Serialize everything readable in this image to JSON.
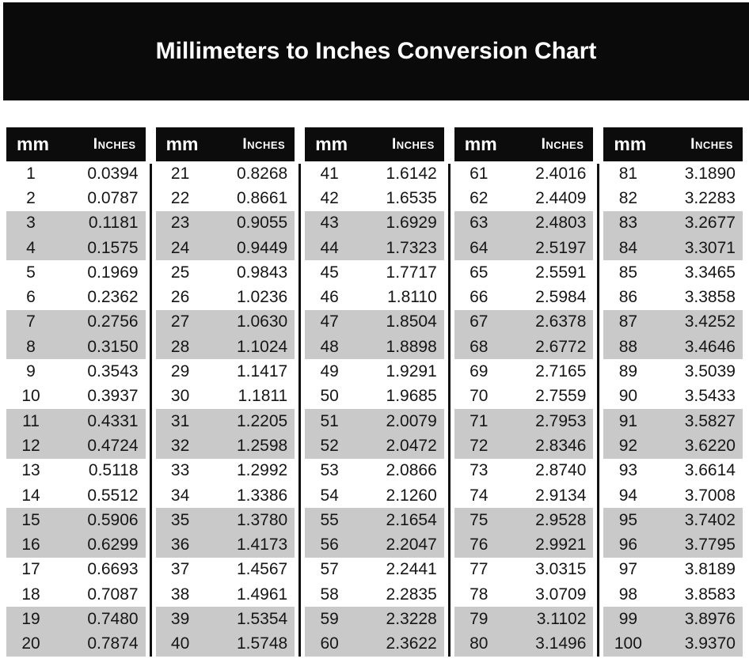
{
  "title": "Millimeters to Inches Conversion Chart",
  "column_headers": {
    "mm": "mm",
    "inches": "Inches"
  },
  "colors": {
    "banner_background": "#0a0a0a",
    "header_background": "#0c0c0c",
    "shaded_row": "#c9c9c9",
    "header_text": "#ffffff",
    "body_text": "#161616"
  },
  "table": {
    "groups": [
      {
        "rows": [
          {
            "mm": "1",
            "inches": "0.0394"
          },
          {
            "mm": "2",
            "inches": "0.0787"
          },
          {
            "mm": "3",
            "inches": "0.1181"
          },
          {
            "mm": "4",
            "inches": "0.1575"
          },
          {
            "mm": "5",
            "inches": "0.1969"
          },
          {
            "mm": "6",
            "inches": "0.2362"
          },
          {
            "mm": "7",
            "inches": "0.2756"
          },
          {
            "mm": "8",
            "inches": "0.3150"
          },
          {
            "mm": "9",
            "inches": "0.3543"
          },
          {
            "mm": "10",
            "inches": "0.3937"
          },
          {
            "mm": "11",
            "inches": "0.4331"
          },
          {
            "mm": "12",
            "inches": "0.4724"
          },
          {
            "mm": "13",
            "inches": "0.5118"
          },
          {
            "mm": "14",
            "inches": "0.5512"
          },
          {
            "mm": "15",
            "inches": "0.5906"
          },
          {
            "mm": "16",
            "inches": "0.6299"
          },
          {
            "mm": "17",
            "inches": "0.6693"
          },
          {
            "mm": "18",
            "inches": "0.7087"
          },
          {
            "mm": "19",
            "inches": "0.7480"
          },
          {
            "mm": "20",
            "inches": "0.7874"
          }
        ]
      },
      {
        "rows": [
          {
            "mm": "21",
            "inches": "0.8268"
          },
          {
            "mm": "22",
            "inches": "0.8661"
          },
          {
            "mm": "23",
            "inches": "0.9055"
          },
          {
            "mm": "24",
            "inches": "0.9449"
          },
          {
            "mm": "25",
            "inches": "0.9843"
          },
          {
            "mm": "26",
            "inches": "1.0236"
          },
          {
            "mm": "27",
            "inches": "1.0630"
          },
          {
            "mm": "28",
            "inches": "1.1024"
          },
          {
            "mm": "29",
            "inches": "1.1417"
          },
          {
            "mm": "30",
            "inches": "1.1811"
          },
          {
            "mm": "31",
            "inches": "1.2205"
          },
          {
            "mm": "32",
            "inches": "1.2598"
          },
          {
            "mm": "33",
            "inches": "1.2992"
          },
          {
            "mm": "34",
            "inches": "1.3386"
          },
          {
            "mm": "35",
            "inches": "1.3780"
          },
          {
            "mm": "36",
            "inches": "1.4173"
          },
          {
            "mm": "37",
            "inches": "1.4567"
          },
          {
            "mm": "38",
            "inches": "1.4961"
          },
          {
            "mm": "39",
            "inches": "1.5354"
          },
          {
            "mm": "40",
            "inches": "1.5748"
          }
        ]
      },
      {
        "rows": [
          {
            "mm": "41",
            "inches": "1.6142"
          },
          {
            "mm": "42",
            "inches": "1.6535"
          },
          {
            "mm": "43",
            "inches": "1.6929"
          },
          {
            "mm": "44",
            "inches": "1.7323"
          },
          {
            "mm": "45",
            "inches": "1.7717"
          },
          {
            "mm": "46",
            "inches": "1.8110"
          },
          {
            "mm": "47",
            "inches": "1.8504"
          },
          {
            "mm": "48",
            "inches": "1.8898"
          },
          {
            "mm": "49",
            "inches": "1.9291"
          },
          {
            "mm": "50",
            "inches": "1.9685"
          },
          {
            "mm": "51",
            "inches": "2.0079"
          },
          {
            "mm": "52",
            "inches": "2.0472"
          },
          {
            "mm": "53",
            "inches": "2.0866"
          },
          {
            "mm": "54",
            "inches": "2.1260"
          },
          {
            "mm": "55",
            "inches": "2.1654"
          },
          {
            "mm": "56",
            "inches": "2.2047"
          },
          {
            "mm": "57",
            "inches": "2.2441"
          },
          {
            "mm": "58",
            "inches": "2.2835"
          },
          {
            "mm": "59",
            "inches": "2.3228"
          },
          {
            "mm": "60",
            "inches": "2.3622"
          }
        ]
      },
      {
        "rows": [
          {
            "mm": "61",
            "inches": "2.4016"
          },
          {
            "mm": "62",
            "inches": "2.4409"
          },
          {
            "mm": "63",
            "inches": "2.4803"
          },
          {
            "mm": "64",
            "inches": "2.5197"
          },
          {
            "mm": "65",
            "inches": "2.5591"
          },
          {
            "mm": "66",
            "inches": "2.5984"
          },
          {
            "mm": "67",
            "inches": "2.6378"
          },
          {
            "mm": "68",
            "inches": "2.6772"
          },
          {
            "mm": "69",
            "inches": "2.7165"
          },
          {
            "mm": "70",
            "inches": "2.7559"
          },
          {
            "mm": "71",
            "inches": "2.7953"
          },
          {
            "mm": "72",
            "inches": "2.8346"
          },
          {
            "mm": "73",
            "inches": "2.8740"
          },
          {
            "mm": "74",
            "inches": "2.9134"
          },
          {
            "mm": "75",
            "inches": "2.9528"
          },
          {
            "mm": "76",
            "inches": "2.9921"
          },
          {
            "mm": "77",
            "inches": "3.0315"
          },
          {
            "mm": "78",
            "inches": "3.0709"
          },
          {
            "mm": "79",
            "inches": "3.1102"
          },
          {
            "mm": "80",
            "inches": "3.1496"
          }
        ]
      },
      {
        "rows": [
          {
            "mm": "81",
            "inches": "3.1890"
          },
          {
            "mm": "82",
            "inches": "3.2283"
          },
          {
            "mm": "83",
            "inches": "3.2677"
          },
          {
            "mm": "84",
            "inches": "3.3071"
          },
          {
            "mm": "85",
            "inches": "3.3465"
          },
          {
            "mm": "86",
            "inches": "3.3858"
          },
          {
            "mm": "87",
            "inches": "3.4252"
          },
          {
            "mm": "88",
            "inches": "3.4646"
          },
          {
            "mm": "89",
            "inches": "3.5039"
          },
          {
            "mm": "90",
            "inches": "3.5433"
          },
          {
            "mm": "91",
            "inches": "3.5827"
          },
          {
            "mm": "92",
            "inches": "3.6220"
          },
          {
            "mm": "93",
            "inches": "3.6614"
          },
          {
            "mm": "94",
            "inches": "3.7008"
          },
          {
            "mm": "95",
            "inches": "3.7402"
          },
          {
            "mm": "96",
            "inches": "3.7795"
          },
          {
            "mm": "97",
            "inches": "3.8189"
          },
          {
            "mm": "98",
            "inches": "3.8583"
          },
          {
            "mm": "99",
            "inches": "3.8976"
          },
          {
            "mm": "100",
            "inches": "3.9370"
          }
        ]
      }
    ]
  }
}
